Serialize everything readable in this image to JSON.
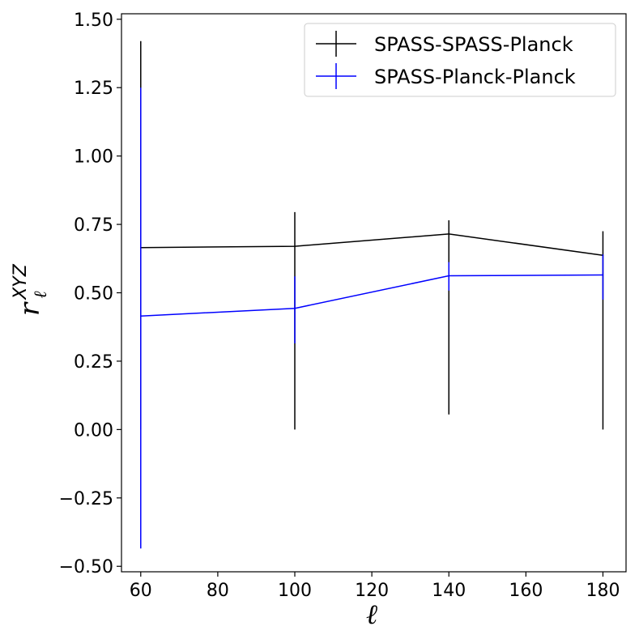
{
  "chart_data": {
    "type": "line",
    "title": "",
    "xlabel": "ℓ",
    "ylabel": {
      "base": "r",
      "sub": "ℓ",
      "sup": "XYZ"
    },
    "xlim": [
      55,
      186
    ],
    "ylim": [
      -0.52,
      1.52
    ],
    "xticks": [
      60,
      80,
      100,
      120,
      140,
      160,
      180
    ],
    "xtick_labels": [
      "60",
      "80",
      "100",
      "120",
      "140",
      "160",
      "180"
    ],
    "yticks": [
      -0.5,
      -0.25,
      0.0,
      0.25,
      0.5,
      0.75,
      1.0,
      1.25,
      1.5
    ],
    "ytick_labels": [
      "−0.50",
      "−0.25",
      "0.00",
      "0.25",
      "0.50",
      "0.75",
      "1.00",
      "1.25",
      "1.50"
    ],
    "legend_position": "top-right",
    "series": [
      {
        "name": "SPASS-SPASS-Planck",
        "color": "#000000",
        "x": [
          60,
          100,
          140,
          180
        ],
        "y": [
          0.665,
          0.67,
          0.715,
          0.637
        ],
        "err_low": [
          0.0,
          0.0,
          0.055,
          0.0
        ],
        "err_high": [
          1.42,
          0.795,
          0.765,
          0.725
        ]
      },
      {
        "name": "SPASS-Planck-Planck",
        "color": "#0000ff",
        "x": [
          60,
          100,
          140,
          180
        ],
        "y": [
          0.415,
          0.443,
          0.562,
          0.565
        ],
        "err_low": [
          -0.435,
          0.315,
          0.508,
          0.475
        ],
        "err_high": [
          1.25,
          0.56,
          0.612,
          0.64
        ]
      }
    ]
  }
}
